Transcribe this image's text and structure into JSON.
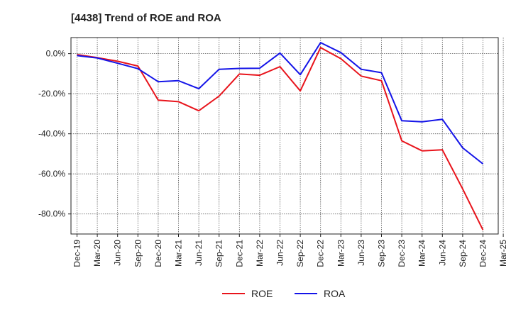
{
  "chart_data": {
    "type": "line",
    "title": "[4438]  Trend of ROE and ROA",
    "xlabel": "",
    "ylabel": "",
    "x": [
      "Dec-19",
      "Mar-20",
      "Jun-20",
      "Sep-20",
      "Dec-20",
      "Mar-21",
      "Jun-21",
      "Sep-21",
      "Dec-21",
      "Mar-22",
      "Jun-22",
      "Sep-22",
      "Dec-22",
      "Mar-23",
      "Jun-23",
      "Sep-23",
      "Dec-23",
      "Mar-24",
      "Jun-24",
      "Sep-24",
      "Dec-24",
      "Mar-25"
    ],
    "ylim": [
      -90,
      8
    ],
    "yticks": [
      0,
      -20,
      -40,
      -60,
      -80
    ],
    "ytick_labels": [
      "0.0%",
      "-20.0%",
      "-40.0%",
      "-60.0%",
      "-80.0%"
    ],
    "grid": true,
    "legend_position": "bottom",
    "series": [
      {
        "name": "ROE",
        "color": "#e8141c",
        "values": [
          -0.5,
          -2.0,
          -3.8,
          -6.2,
          -23.2,
          -24.0,
          -28.5,
          -21.2,
          -10.2,
          -10.8,
          -6.5,
          -18.6,
          3.0,
          -2.5,
          -11.2,
          -13.5,
          -43.5,
          -48.5,
          -48.0,
          -67.5,
          -88.0,
          null
        ]
      },
      {
        "name": "ROA",
        "color": "#1414e8",
        "values": [
          -1.0,
          -2.2,
          -4.8,
          -7.5,
          -14.0,
          -13.5,
          -17.5,
          -7.8,
          -7.4,
          -7.3,
          0.3,
          -10.5,
          5.5,
          0.5,
          -7.8,
          -9.5,
          -33.5,
          -34.0,
          -32.8,
          -47.0,
          -55.0,
          null
        ]
      }
    ]
  }
}
